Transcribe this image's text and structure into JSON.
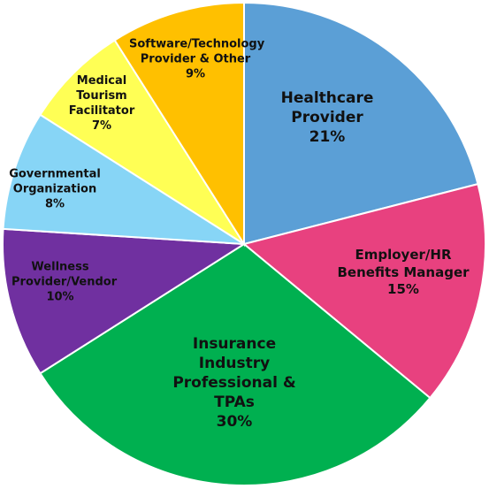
{
  "chart_data": {
    "type": "pie",
    "categories": [
      "Healthcare Provider",
      "Employer/HR Benefits Manager",
      "Insurance Industry Professional & TPAs",
      "Wellness Provider/Vendor",
      "Governmental Organization",
      "Medical Tourism Facilitator",
      "Software/Technology Provider & Other"
    ],
    "values": [
      21,
      15,
      30,
      10,
      8,
      7,
      9
    ],
    "value_labels": [
      "21%",
      "15%",
      "30%",
      "10%",
      "8%",
      "7%",
      "9%"
    ],
    "colors": [
      "#5b9fd6",
      "#e8417f",
      "#00b050",
      "#7030a0",
      "#87d5f6",
      "#ffff55",
      "#ffc000"
    ]
  }
}
